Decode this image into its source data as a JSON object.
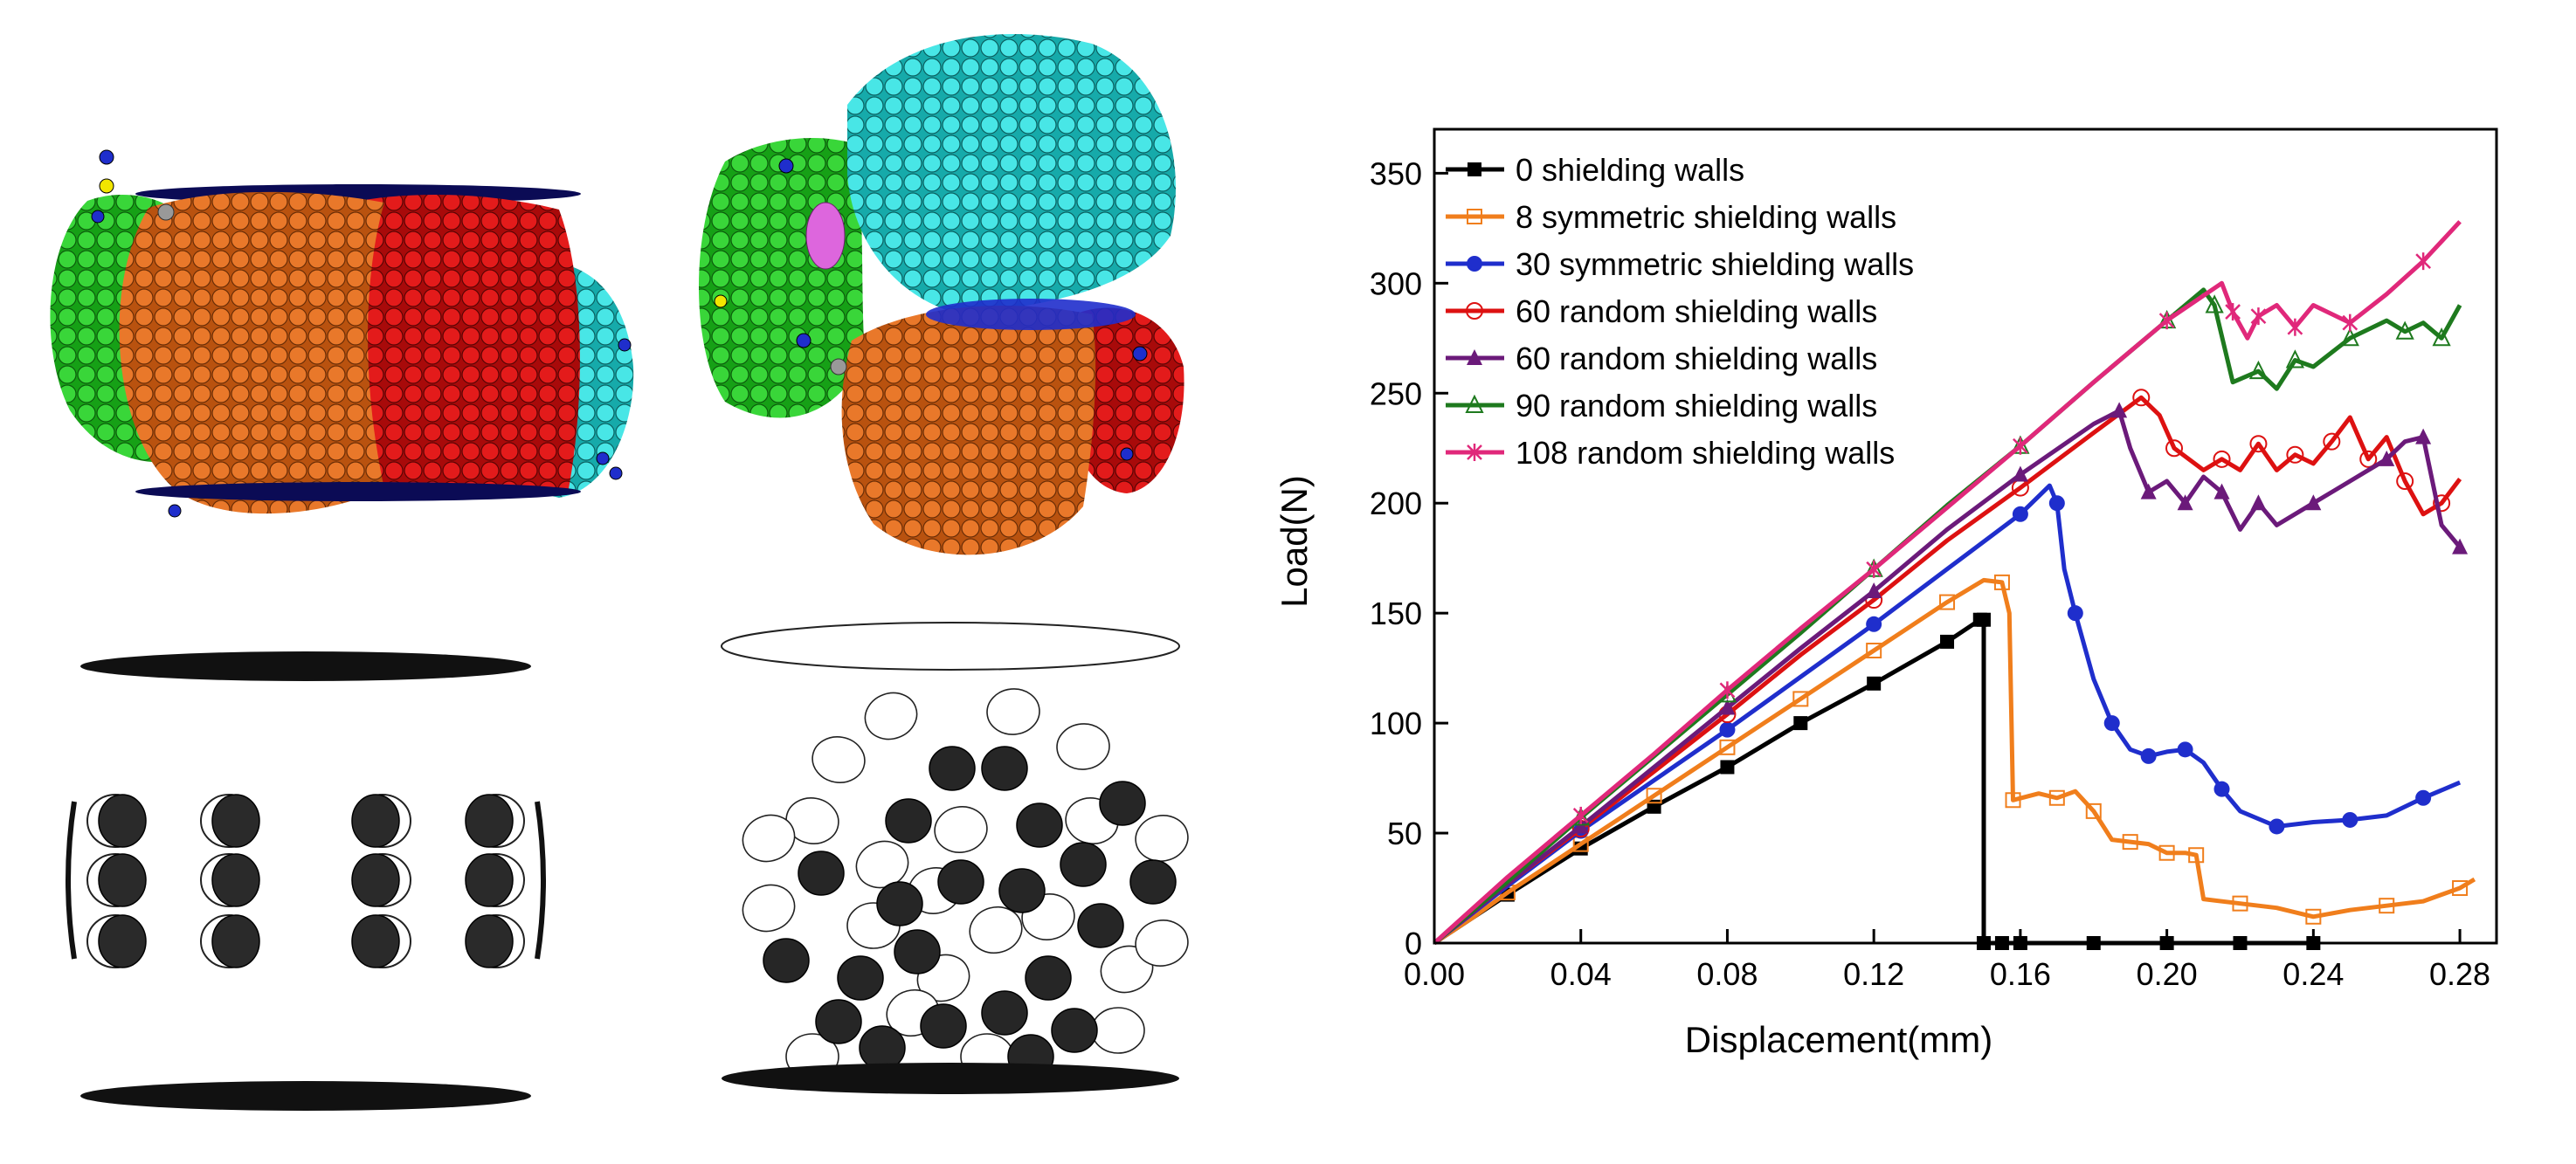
{
  "colors": {
    "green": "#22cc22",
    "orange": "#e06c1a",
    "red": "#dd1111",
    "cyan": "#33dddd",
    "blue_dot": "#1f2ecc",
    "dark_navy": "#0b0b55",
    "pink": "#dd66dd",
    "grey": "#999999",
    "yellow": "#f2e600"
  },
  "illustrations": [
    {
      "label": "cylindrical-specimen-particles",
      "kind": "particle-cluster"
    },
    {
      "label": "spherical-specimen-particles",
      "kind": "particle-cluster"
    },
    {
      "label": "symmetric-shielding-wall-layout",
      "kind": "wall-layout"
    },
    {
      "label": "random-shielding-wall-layout",
      "kind": "wall-layout"
    }
  ],
  "chart_data": {
    "type": "line",
    "xlabel": "Displacement(mm)",
    "ylabel": "Load(N)",
    "xlim": [
      0,
      0.29
    ],
    "ylim": [
      0,
      370
    ],
    "xticks": [
      "0.00",
      "0.04",
      "0.08",
      "0.12",
      "0.16",
      "0.20",
      "0.24",
      "0.28"
    ],
    "yticks": [
      "0",
      "50",
      "100",
      "150",
      "200",
      "250",
      "300",
      "350"
    ],
    "legend_position": "top-left",
    "grid": false,
    "series": [
      {
        "name": "0 shielding walls",
        "color": "#000000",
        "marker": "square-filled",
        "x": [
          0,
          0.02,
          0.04,
          0.06,
          0.08,
          0.1,
          0.12,
          0.14,
          0.149,
          0.15,
          0.15,
          0.155,
          0.16,
          0.18,
          0.2,
          0.22,
          0.24
        ],
        "y": [
          0,
          22,
          43,
          62,
          80,
          100,
          118,
          137,
          147,
          147,
          0,
          0,
          0,
          0,
          0,
          0,
          0
        ]
      },
      {
        "name": "8 symmetric shielding walls",
        "color": "#f07e1c",
        "marker": "square-open",
        "x": [
          0,
          0.01,
          0.02,
          0.03,
          0.04,
          0.05,
          0.06,
          0.07,
          0.08,
          0.09,
          0.1,
          0.11,
          0.12,
          0.13,
          0.14,
          0.15,
          0.155,
          0.157,
          0.158,
          0.165,
          0.17,
          0.175,
          0.18,
          0.185,
          0.19,
          0.195,
          0.2,
          0.205,
          0.208,
          0.21,
          0.22,
          0.23,
          0.24,
          0.25,
          0.26,
          0.27,
          0.28,
          0.284
        ],
        "y": [
          0,
          11,
          23,
          34,
          45,
          56,
          67,
          78,
          89,
          100,
          111,
          122,
          133,
          144,
          155,
          165,
          164,
          150,
          65,
          68,
          66,
          69,
          60,
          47,
          46,
          45,
          41,
          41,
          40,
          20,
          18,
          16,
          12,
          15,
          17,
          19,
          25,
          29
        ]
      },
      {
        "name": "30 symmetric shielding walls",
        "color": "#1f2ecc",
        "marker": "circle-filled",
        "x": [
          0,
          0.02,
          0.04,
          0.06,
          0.08,
          0.1,
          0.12,
          0.14,
          0.16,
          0.168,
          0.17,
          0.172,
          0.175,
          0.18,
          0.185,
          0.19,
          0.195,
          0.2,
          0.205,
          0.21,
          0.215,
          0.22,
          0.23,
          0.24,
          0.25,
          0.26,
          0.27,
          0.28
        ],
        "y": [
          0,
          26,
          51,
          74,
          97,
          121,
          145,
          170,
          195,
          208,
          200,
          170,
          150,
          120,
          100,
          88,
          85,
          87,
          88,
          82,
          70,
          60,
          53,
          55,
          56,
          58,
          66,
          73
        ]
      },
      {
        "name": "60 random shielding walls",
        "color": "#dd1111",
        "marker": "circle-open",
        "x": [
          0,
          0.02,
          0.04,
          0.06,
          0.08,
          0.1,
          0.12,
          0.14,
          0.16,
          0.18,
          0.193,
          0.198,
          0.202,
          0.21,
          0.215,
          0.22,
          0.225,
          0.23,
          0.235,
          0.24,
          0.245,
          0.25,
          0.255,
          0.26,
          0.265,
          0.27,
          0.275,
          0.28
        ],
        "y": [
          0,
          27,
          52,
          78,
          104,
          131,
          156,
          183,
          207,
          232,
          248,
          240,
          225,
          215,
          220,
          215,
          227,
          215,
          222,
          218,
          228,
          239,
          220,
          230,
          210,
          195,
          200,
          211
        ]
      },
      {
        "name": "60 random shielding walls",
        "color": "#6b1a7a",
        "marker": "triangle-filled",
        "x": [
          0,
          0.02,
          0.04,
          0.06,
          0.08,
          0.1,
          0.12,
          0.14,
          0.16,
          0.18,
          0.187,
          0.19,
          0.195,
          0.2,
          0.205,
          0.21,
          0.215,
          0.22,
          0.225,
          0.23,
          0.24,
          0.25,
          0.26,
          0.265,
          0.27,
          0.275,
          0.28
        ],
        "y": [
          0,
          27,
          53,
          80,
          107,
          134,
          160,
          188,
          213,
          236,
          242,
          225,
          205,
          210,
          200,
          212,
          205,
          188,
          200,
          190,
          200,
          210,
          220,
          228,
          230,
          190,
          180
        ]
      },
      {
        "name": "90 random shielding walls",
        "color": "#1e7a1e",
        "marker": "triangle-open",
        "x": [
          0,
          0.02,
          0.04,
          0.06,
          0.08,
          0.1,
          0.12,
          0.14,
          0.16,
          0.18,
          0.2,
          0.21,
          0.213,
          0.218,
          0.225,
          0.23,
          0.235,
          0.24,
          0.25,
          0.26,
          0.265,
          0.27,
          0.275,
          0.28
        ],
        "y": [
          0,
          28,
          57,
          85,
          113,
          141,
          170,
          199,
          226,
          255,
          283,
          297,
          290,
          255,
          260,
          252,
          265,
          262,
          275,
          283,
          278,
          282,
          275,
          290
        ]
      },
      {
        "name": "108 random shielding walls",
        "color": "#e0287a",
        "marker": "x",
        "x": [
          0,
          0.02,
          0.04,
          0.06,
          0.08,
          0.1,
          0.12,
          0.14,
          0.16,
          0.18,
          0.2,
          0.215,
          0.218,
          0.222,
          0.225,
          0.23,
          0.235,
          0.24,
          0.25,
          0.26,
          0.27,
          0.28
        ],
        "y": [
          0,
          30,
          58,
          86,
          115,
          143,
          170,
          198,
          226,
          255,
          283,
          300,
          287,
          275,
          285,
          290,
          280,
          290,
          282,
          295,
          310,
          328
        ]
      }
    ]
  }
}
